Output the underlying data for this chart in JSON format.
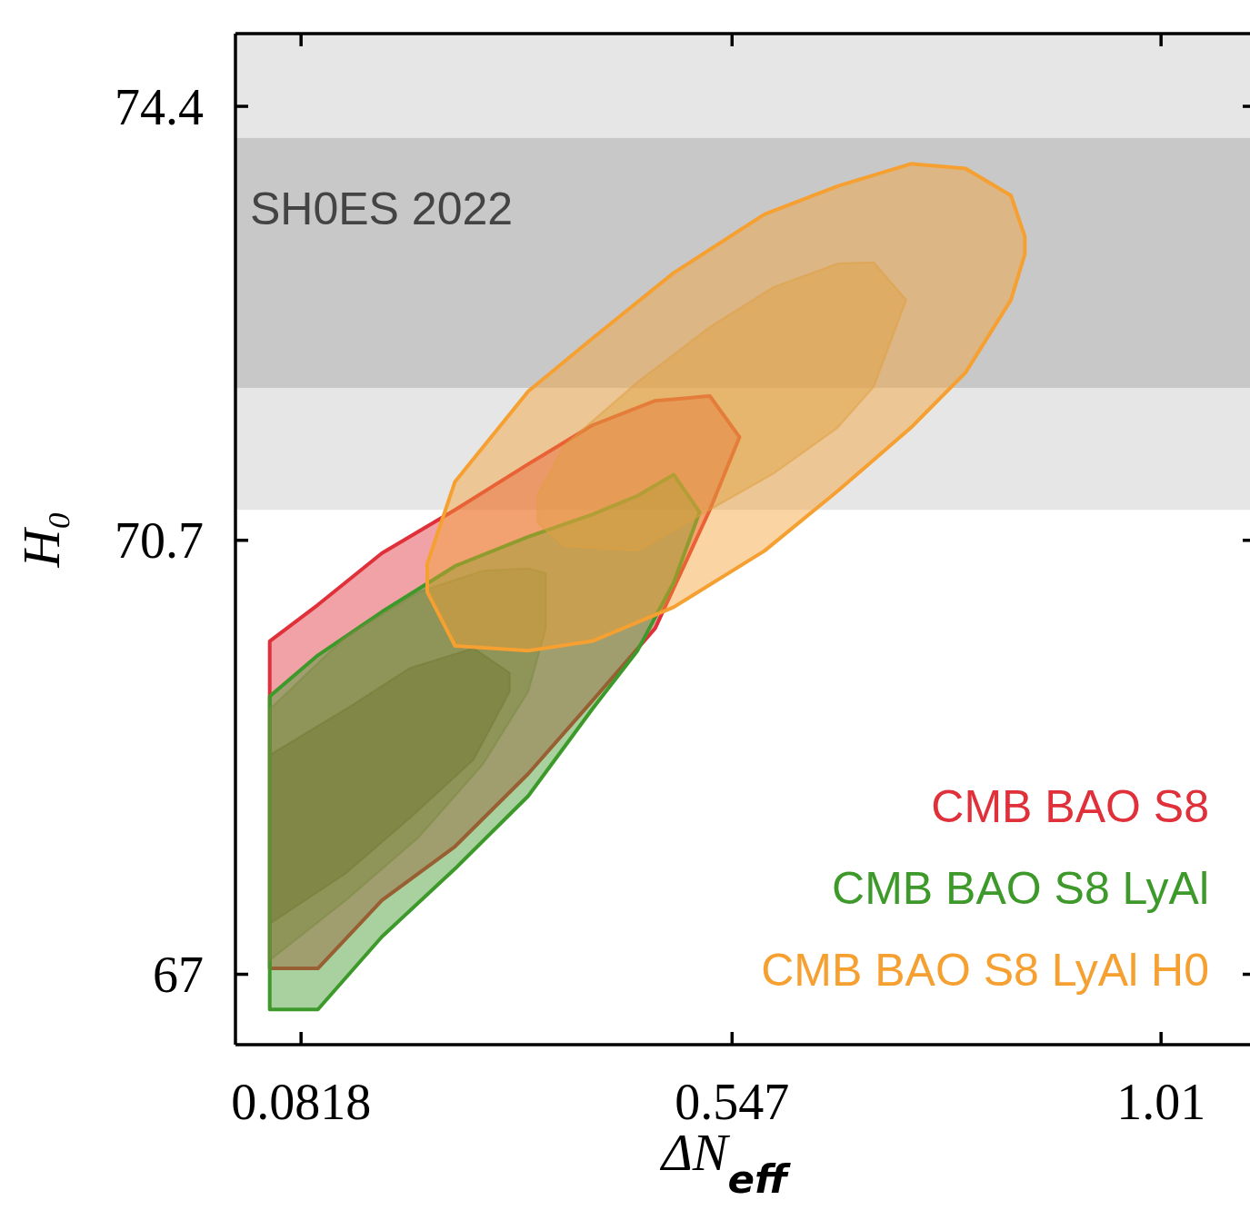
{
  "chart_data": {
    "type": "area",
    "xlabel": "ΔN$_{eff}$",
    "ylabel": "H₀",
    "xlim": [
      0.011,
      1.106
    ],
    "ylim": [
      66.4,
      75.02
    ],
    "xticks": [
      0.0818,
      0.547,
      1.01
    ],
    "yticks": [
      67,
      70.7,
      74.4
    ],
    "bands": [
      {
        "axis": "y",
        "from": 70.96,
        "to": 75.02,
        "color": "#e6e6e6"
      },
      {
        "axis": "y",
        "from": 72.0,
        "to": 74.13,
        "color": "#c8c8c8",
        "label": "SH0ES 2022"
      }
    ],
    "legend": "bottom right",
    "series": [
      {
        "name": "CMB BAO S8",
        "color": "#e0303a",
        "x": [
          0.048,
          0.1,
          0.169,
          0.248,
          0.327,
          0.396,
          0.464,
          0.523,
          0.555,
          0.523,
          0.464,
          0.396,
          0.327,
          0.248,
          0.169,
          0.1,
          0.048
        ],
        "values": [
          69.84,
          70.15,
          70.59,
          70.96,
          71.35,
          71.68,
          71.89,
          71.93,
          71.58,
          70.96,
          69.95,
          69.33,
          68.71,
          68.09,
          67.63,
          67.05,
          67.05
        ]
      },
      {
        "color": "#8b4a25",
        "x": [
          0.048,
          0.13,
          0.199,
          0.268,
          0.307,
          0.307,
          0.268,
          0.199,
          0.13,
          0.048
        ],
        "values": [
          68.87,
          69.26,
          69.61,
          69.78,
          69.57,
          69.41,
          68.83,
          68.33,
          67.86,
          67.43
        ]
      },
      {
        "name": "CMB BAO S8 LyAl",
        "color": "#3d9a2a",
        "x": [
          0.048,
          0.1,
          0.169,
          0.248,
          0.327,
          0.396,
          0.445,
          0.484,
          0.512,
          0.484,
          0.445,
          0.396,
          0.327,
          0.248,
          0.169,
          0.1,
          0.048
        ],
        "values": [
          69.37,
          69.72,
          70.09,
          70.48,
          70.73,
          70.92,
          71.08,
          71.26,
          70.94,
          70.34,
          69.76,
          69.26,
          68.52,
          67.9,
          67.32,
          66.7,
          66.7
        ]
      },
      {
        "color": "#7a8a40",
        "x": [
          0.048,
          0.13,
          0.209,
          0.278,
          0.327,
          0.346,
          0.346,
          0.327,
          0.278,
          0.209,
          0.13,
          0.048
        ],
        "values": [
          69.26,
          69.88,
          70.26,
          70.44,
          70.46,
          70.42,
          69.95,
          69.41,
          68.79,
          68.17,
          67.63,
          67.12
        ]
      },
      {
        "name": "CMB BAO S8 LyAl H0",
        "color": "#f5a030",
        "x": [
          0.218,
          0.248,
          0.327,
          0.396,
          0.484,
          0.582,
          0.661,
          0.74,
          0.799,
          0.848,
          0.863,
          0.863,
          0.848,
          0.799,
          0.74,
          0.661,
          0.582,
          0.484,
          0.396,
          0.327,
          0.248,
          0.218
        ],
        "values": [
          70.5,
          71.2,
          71.97,
          72.42,
          72.98,
          73.48,
          73.72,
          73.91,
          73.87,
          73.64,
          73.29,
          73.14,
          72.75,
          72.13,
          71.66,
          71.12,
          70.61,
          70.13,
          69.84,
          69.76,
          69.8,
          70.26
        ]
      },
      {
        "color": "#e0a040",
        "x": [
          0.337,
          0.366,
          0.445,
          0.523,
          0.592,
          0.661,
          0.7,
          0.735,
          0.7,
          0.661,
          0.592,
          0.523,
          0.445,
          0.366,
          0.337
        ],
        "values": [
          71.08,
          71.51,
          72.05,
          72.52,
          72.86,
          73.06,
          73.07,
          72.75,
          72.01,
          71.66,
          71.27,
          70.96,
          70.61,
          70.65,
          70.85
        ]
      }
    ]
  }
}
